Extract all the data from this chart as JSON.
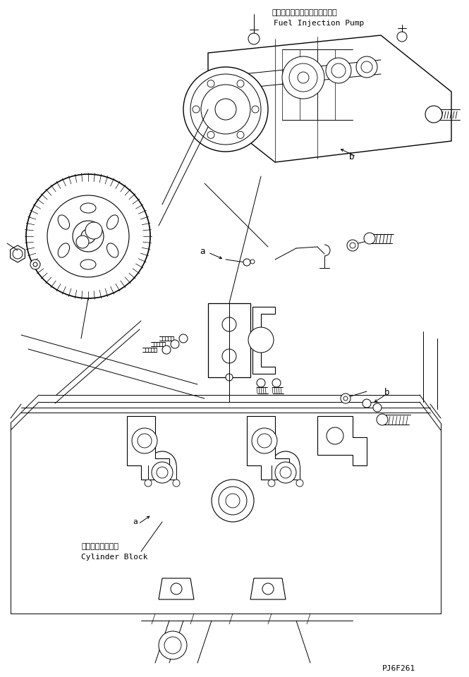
{
  "bg_color": "#ffffff",
  "line_color": "#000000",
  "fig_width": 6.65,
  "fig_height": 9.6,
  "dpi": 100,
  "label_top_japanese": "フェルインジェクションポンプ",
  "label_top_english": "Fuel Injection Pump",
  "label_bottom_japanese": "シリンダブロック",
  "label_bottom_english": "Cylinder Block",
  "label_a": "a",
  "label_b": "b",
  "part_code": "PJ6F261"
}
